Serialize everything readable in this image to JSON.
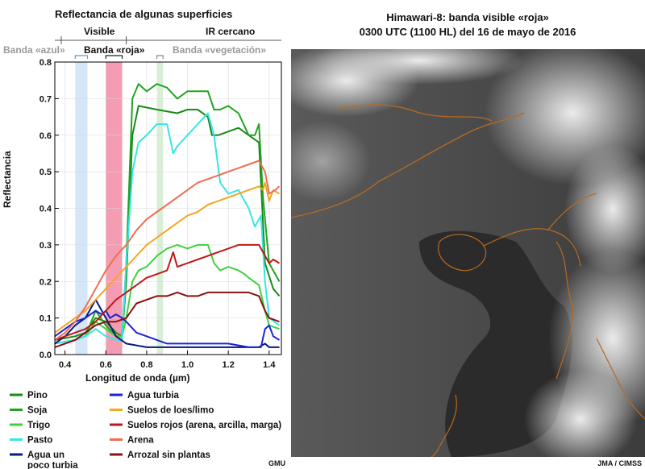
{
  "left_panel": {
    "title": "Reflectancia de algunas superficies",
    "credit": "GMU"
  },
  "right_panel": {
    "title_line1": "Himawari-8: banda visible «roja»",
    "title_line2": "0300 UTC (1100 HL) del 16 de mayo de 2016",
    "credit": "JMA / CIMSS",
    "colors": {
      "coastline": "#b86a22",
      "cloud": "#f2f2f2",
      "land": "#4a4a4a",
      "sea": "#2b2b2b"
    }
  },
  "chart_data": {
    "type": "line",
    "xlabel": "Longitud de onda (µm)",
    "ylabel": "Reflectancia",
    "xlim": [
      0.35,
      1.46
    ],
    "ylim": [
      0,
      0.8
    ],
    "xticks": [
      0.4,
      0.6,
      0.8,
      1.0,
      1.2,
      1.4
    ],
    "xtick_labels": [
      "0.4",
      "0.6",
      "0.8",
      "1.0",
      "1.2",
      "1.4"
    ],
    "yticks": [
      0.0,
      0.1,
      0.2,
      0.3,
      0.4,
      0.5,
      0.6,
      0.7,
      0.8
    ],
    "ytick_labels": [
      "0.0",
      "0.1",
      "0.2",
      "0.3",
      "0.4",
      "0.5",
      "0.6",
      "0.7",
      "0.8"
    ],
    "region_labels": {
      "visible": "Visible",
      "nir": "IR cercano",
      "boundary_x": 0.7
    },
    "bands": [
      {
        "name": "Banda «azul»",
        "x0": 0.45,
        "x1": 0.51,
        "color": "#cfe3f7"
      },
      {
        "name": "Banda «roja»",
        "x0": 0.6,
        "x1": 0.68,
        "color": "#f28ca4"
      },
      {
        "name": "Banda «vegetación»",
        "x0": 0.85,
        "x1": 0.88,
        "color": "#d4ecd0"
      }
    ],
    "band_colors": {
      "blue": "#5b9bd5",
      "red": "#222222",
      "veg": "#888888"
    },
    "legend_placement": "bottom",
    "series": [
      {
        "name": "Pino",
        "color": "#1a8a1a",
        "points": [
          [
            0.35,
            0.04
          ],
          [
            0.45,
            0.05
          ],
          [
            0.5,
            0.06
          ],
          [
            0.55,
            0.1
          ],
          [
            0.6,
            0.09
          ],
          [
            0.65,
            0.06
          ],
          [
            0.68,
            0.05
          ],
          [
            0.7,
            0.2
          ],
          [
            0.73,
            0.6
          ],
          [
            0.76,
            0.68
          ],
          [
            0.85,
            0.67
          ],
          [
            0.95,
            0.66
          ],
          [
            1.0,
            0.67
          ],
          [
            1.05,
            0.67
          ],
          [
            1.1,
            0.65
          ],
          [
            1.12,
            0.6
          ],
          [
            1.15,
            0.6
          ],
          [
            1.25,
            0.62
          ],
          [
            1.3,
            0.6
          ],
          [
            1.35,
            0.58
          ],
          [
            1.38,
            0.25
          ],
          [
            1.42,
            0.18
          ],
          [
            1.45,
            0.16
          ]
        ]
      },
      {
        "name": "Soja",
        "color": "#21a321",
        "points": [
          [
            0.35,
            0.03
          ],
          [
            0.45,
            0.04
          ],
          [
            0.5,
            0.05
          ],
          [
            0.55,
            0.12
          ],
          [
            0.6,
            0.08
          ],
          [
            0.65,
            0.05
          ],
          [
            0.68,
            0.05
          ],
          [
            0.7,
            0.25
          ],
          [
            0.73,
            0.7
          ],
          [
            0.76,
            0.74
          ],
          [
            0.8,
            0.72
          ],
          [
            0.85,
            0.74
          ],
          [
            0.9,
            0.73
          ],
          [
            0.95,
            0.7
          ],
          [
            1.0,
            0.72
          ],
          [
            1.05,
            0.72
          ],
          [
            1.1,
            0.72
          ],
          [
            1.13,
            0.67
          ],
          [
            1.16,
            0.67
          ],
          [
            1.2,
            0.68
          ],
          [
            1.25,
            0.66
          ],
          [
            1.3,
            0.6
          ],
          [
            1.33,
            0.6
          ],
          [
            1.35,
            0.63
          ],
          [
            1.37,
            0.43
          ],
          [
            1.4,
            0.25
          ],
          [
            1.45,
            0.2
          ]
        ]
      },
      {
        "name": "Trigo",
        "color": "#3fd13f",
        "points": [
          [
            0.35,
            0.03
          ],
          [
            0.45,
            0.04
          ],
          [
            0.5,
            0.05
          ],
          [
            0.55,
            0.09
          ],
          [
            0.6,
            0.07
          ],
          [
            0.65,
            0.05
          ],
          [
            0.68,
            0.05
          ],
          [
            0.7,
            0.1
          ],
          [
            0.73,
            0.2
          ],
          [
            0.76,
            0.23
          ],
          [
            0.8,
            0.24
          ],
          [
            0.85,
            0.27
          ],
          [
            0.9,
            0.29
          ],
          [
            0.95,
            0.3
          ],
          [
            1.0,
            0.29
          ],
          [
            1.05,
            0.3
          ],
          [
            1.1,
            0.3
          ],
          [
            1.13,
            0.25
          ],
          [
            1.16,
            0.23
          ],
          [
            1.2,
            0.24
          ],
          [
            1.25,
            0.23
          ],
          [
            1.28,
            0.22
          ],
          [
            1.3,
            0.21
          ],
          [
            1.35,
            0.19
          ],
          [
            1.38,
            0.12
          ],
          [
            1.4,
            0.08
          ],
          [
            1.45,
            0.07
          ]
        ]
      },
      {
        "name": "Pasto",
        "color": "#36e6e6",
        "points": [
          [
            0.35,
            0.03
          ],
          [
            0.45,
            0.04
          ],
          [
            0.5,
            0.05
          ],
          [
            0.55,
            0.07
          ],
          [
            0.6,
            0.05
          ],
          [
            0.65,
            0.04
          ],
          [
            0.68,
            0.04
          ],
          [
            0.7,
            0.25
          ],
          [
            0.73,
            0.5
          ],
          [
            0.76,
            0.58
          ],
          [
            0.8,
            0.6
          ],
          [
            0.85,
            0.63
          ],
          [
            0.9,
            0.63
          ],
          [
            0.93,
            0.55
          ],
          [
            0.95,
            0.57
          ],
          [
            1.0,
            0.6
          ],
          [
            1.05,
            0.63
          ],
          [
            1.1,
            0.66
          ],
          [
            1.13,
            0.6
          ],
          [
            1.16,
            0.47
          ],
          [
            1.2,
            0.44
          ],
          [
            1.25,
            0.45
          ],
          [
            1.3,
            0.4
          ],
          [
            1.33,
            0.35
          ],
          [
            1.36,
            0.38
          ],
          [
            1.38,
            0.2
          ],
          [
            1.4,
            0.1
          ],
          [
            1.45,
            0.08
          ]
        ]
      },
      {
        "name": "Agua un poco turbia",
        "color": "#0a1a7a",
        "points": [
          [
            0.35,
            0.03
          ],
          [
            0.4,
            0.05
          ],
          [
            0.45,
            0.08
          ],
          [
            0.5,
            0.1
          ],
          [
            0.55,
            0.15
          ],
          [
            0.6,
            0.1
          ],
          [
            0.65,
            0.05
          ],
          [
            0.7,
            0.03
          ],
          [
            0.8,
            0.02
          ],
          [
            0.9,
            0.02
          ],
          [
            1.0,
            0.02
          ],
          [
            1.1,
            0.02
          ],
          [
            1.2,
            0.02
          ],
          [
            1.3,
            0.02
          ],
          [
            1.35,
            0.02
          ],
          [
            1.38,
            0.03
          ],
          [
            1.4,
            0.02
          ],
          [
            1.45,
            0.02
          ]
        ]
      },
      {
        "name": "Agua turbia",
        "color": "#1a24d6",
        "points": [
          [
            0.35,
            0.05
          ],
          [
            0.4,
            0.07
          ],
          [
            0.45,
            0.09
          ],
          [
            0.5,
            0.1
          ],
          [
            0.55,
            0.12
          ],
          [
            0.58,
            0.11
          ],
          [
            0.6,
            0.12
          ],
          [
            0.62,
            0.1
          ],
          [
            0.65,
            0.11
          ],
          [
            0.68,
            0.1
          ],
          [
            0.7,
            0.09
          ],
          [
            0.75,
            0.06
          ],
          [
            0.8,
            0.05
          ],
          [
            0.85,
            0.04
          ],
          [
            0.9,
            0.03
          ],
          [
            1.0,
            0.03
          ],
          [
            1.1,
            0.03
          ],
          [
            1.2,
            0.03
          ],
          [
            1.3,
            0.02
          ],
          [
            1.36,
            0.02
          ],
          [
            1.38,
            0.07
          ],
          [
            1.4,
            0.08
          ],
          [
            1.42,
            0.05
          ],
          [
            1.45,
            0.04
          ]
        ]
      },
      {
        "name": "Suelos de loes/limo",
        "color": "#f5a623",
        "points": [
          [
            0.35,
            0.06
          ],
          [
            0.4,
            0.08
          ],
          [
            0.45,
            0.1
          ],
          [
            0.5,
            0.12
          ],
          [
            0.55,
            0.15
          ],
          [
            0.6,
            0.18
          ],
          [
            0.65,
            0.21
          ],
          [
            0.7,
            0.24
          ],
          [
            0.75,
            0.27
          ],
          [
            0.8,
            0.3
          ],
          [
            0.85,
            0.32
          ],
          [
            0.9,
            0.34
          ],
          [
            0.95,
            0.36
          ],
          [
            1.0,
            0.38
          ],
          [
            1.05,
            0.39
          ],
          [
            1.1,
            0.41
          ],
          [
            1.15,
            0.42
          ],
          [
            1.2,
            0.43
          ],
          [
            1.25,
            0.44
          ],
          [
            1.3,
            0.45
          ],
          [
            1.35,
            0.46
          ],
          [
            1.37,
            0.45
          ],
          [
            1.38,
            0.47
          ],
          [
            1.4,
            0.42
          ],
          [
            1.42,
            0.45
          ],
          [
            1.45,
            0.44
          ]
        ]
      },
      {
        "name": "Suelos rojos (arena, arcilla, marga)",
        "color": "#c01818",
        "points": [
          [
            0.35,
            0.04
          ],
          [
            0.4,
            0.05
          ],
          [
            0.45,
            0.06
          ],
          [
            0.5,
            0.07
          ],
          [
            0.55,
            0.09
          ],
          [
            0.6,
            0.12
          ],
          [
            0.65,
            0.15
          ],
          [
            0.7,
            0.17
          ],
          [
            0.75,
            0.19
          ],
          [
            0.8,
            0.21
          ],
          [
            0.85,
            0.22
          ],
          [
            0.9,
            0.23
          ],
          [
            0.93,
            0.28
          ],
          [
            0.95,
            0.24
          ],
          [
            1.0,
            0.25
          ],
          [
            1.05,
            0.26
          ],
          [
            1.1,
            0.27
          ],
          [
            1.15,
            0.28
          ],
          [
            1.2,
            0.29
          ],
          [
            1.25,
            0.3
          ],
          [
            1.3,
            0.3
          ],
          [
            1.35,
            0.3
          ],
          [
            1.37,
            0.28
          ],
          [
            1.4,
            0.25
          ],
          [
            1.42,
            0.26
          ],
          [
            1.45,
            0.25
          ]
        ]
      },
      {
        "name": "Arena",
        "color": "#ee6e52",
        "points": [
          [
            0.35,
            0.04
          ],
          [
            0.4,
            0.06
          ],
          [
            0.45,
            0.09
          ],
          [
            0.5,
            0.13
          ],
          [
            0.55,
            0.18
          ],
          [
            0.6,
            0.23
          ],
          [
            0.65,
            0.27
          ],
          [
            0.7,
            0.3
          ],
          [
            0.75,
            0.34
          ],
          [
            0.8,
            0.37
          ],
          [
            0.85,
            0.39
          ],
          [
            0.9,
            0.41
          ],
          [
            0.95,
            0.43
          ],
          [
            1.0,
            0.45
          ],
          [
            1.05,
            0.47
          ],
          [
            1.1,
            0.48
          ],
          [
            1.15,
            0.49
          ],
          [
            1.2,
            0.5
          ],
          [
            1.25,
            0.51
          ],
          [
            1.3,
            0.52
          ],
          [
            1.35,
            0.53
          ],
          [
            1.38,
            0.5
          ],
          [
            1.4,
            0.44
          ],
          [
            1.43,
            0.45
          ],
          [
            1.45,
            0.46
          ]
        ]
      },
      {
        "name": "Arrozal sin plantas",
        "color": "#8b1010",
        "points": [
          [
            0.35,
            0.02
          ],
          [
            0.4,
            0.03
          ],
          [
            0.45,
            0.04
          ],
          [
            0.5,
            0.06
          ],
          [
            0.55,
            0.08
          ],
          [
            0.6,
            0.09
          ],
          [
            0.65,
            0.09
          ],
          [
            0.7,
            0.1
          ],
          [
            0.75,
            0.14
          ],
          [
            0.8,
            0.15
          ],
          [
            0.85,
            0.16
          ],
          [
            0.9,
            0.16
          ],
          [
            0.95,
            0.17
          ],
          [
            1.0,
            0.16
          ],
          [
            1.05,
            0.16
          ],
          [
            1.1,
            0.17
          ],
          [
            1.15,
            0.17
          ],
          [
            1.2,
            0.17
          ],
          [
            1.25,
            0.17
          ],
          [
            1.3,
            0.17
          ],
          [
            1.35,
            0.16
          ],
          [
            1.38,
            0.12
          ],
          [
            1.4,
            0.1
          ],
          [
            1.45,
            0.09
          ]
        ]
      }
    ]
  }
}
